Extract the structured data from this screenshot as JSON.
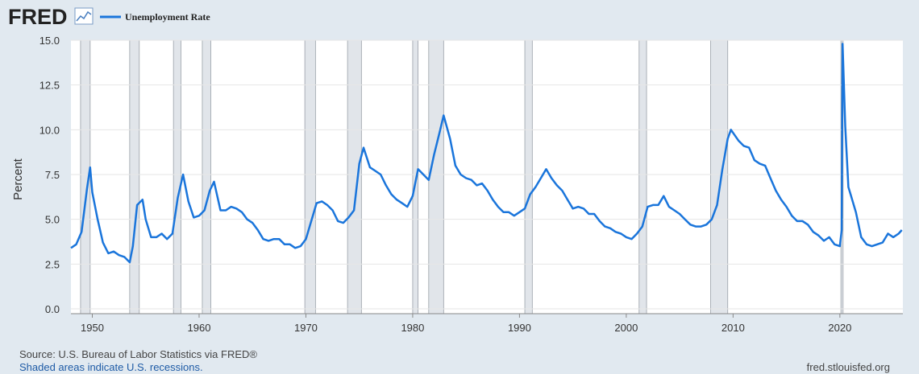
{
  "logo": "FRED",
  "source": "Source: U.S. Bureau of Labor Statistics via FRED®",
  "note": "Shaded areas indicate U.S. recessions.",
  "site": "fred.stlouisfed.org",
  "chart_data": {
    "type": "line",
    "ylabel": "Percent",
    "grid": true,
    "xlim": [
      1948,
      2025.9
    ],
    "ylim": [
      0,
      15
    ],
    "xticks": [
      1950,
      1960,
      1970,
      1980,
      1990,
      2000,
      2010,
      2020
    ],
    "yticks": [
      {
        "value": 0,
        "label": "0.0"
      },
      {
        "value": 2.5,
        "label": "2.5"
      },
      {
        "value": 5,
        "label": "5.0"
      },
      {
        "value": 7.5,
        "label": "7.5"
      },
      {
        "value": 10,
        "label": "10.0"
      },
      {
        "value": 12.5,
        "label": "12.5"
      },
      {
        "value": 15,
        "label": "15.0"
      }
    ],
    "recessions": [
      [
        1948.9,
        1949.8
      ],
      [
        1953.5,
        1954.4
      ],
      [
        1957.6,
        1958.3
      ],
      [
        1960.3,
        1961.1
      ],
      [
        1969.9,
        1970.9
      ],
      [
        1973.9,
        1975.2
      ],
      [
        1980.0,
        1980.5
      ],
      [
        1981.5,
        1982.9
      ],
      [
        1990.5,
        1991.2
      ],
      [
        2001.2,
        2001.9
      ],
      [
        2007.9,
        2009.5
      ],
      [
        2020.1,
        2020.3
      ]
    ],
    "x": [
      1948.0,
      1948.5,
      1949.0,
      1949.5,
      1949.8,
      1950.0,
      1950.5,
      1951.0,
      1951.5,
      1952.0,
      1952.5,
      1953.0,
      1953.5,
      1953.8,
      1954.2,
      1954.7,
      1955.0,
      1955.5,
      1956.0,
      1956.5,
      1957.0,
      1957.5,
      1958.0,
      1958.5,
      1959.0,
      1959.5,
      1960.0,
      1960.5,
      1961.0,
      1961.4,
      1962.0,
      1962.5,
      1963.0,
      1963.5,
      1964.0,
      1964.5,
      1965.0,
      1965.5,
      1966.0,
      1966.5,
      1967.0,
      1967.5,
      1968.0,
      1968.5,
      1969.0,
      1969.5,
      1970.0,
      1970.5,
      1971.0,
      1971.5,
      1972.0,
      1972.5,
      1973.0,
      1973.5,
      1974.0,
      1974.5,
      1975.0,
      1975.4,
      1976.0,
      1976.5,
      1977.0,
      1977.5,
      1978.0,
      1978.5,
      1979.0,
      1979.5,
      1980.0,
      1980.5,
      1981.0,
      1981.5,
      1982.0,
      1982.5,
      1982.9,
      1983.5,
      1984.0,
      1984.5,
      1985.0,
      1985.5,
      1986.0,
      1986.5,
      1987.0,
      1987.5,
      1988.0,
      1988.5,
      1989.0,
      1989.5,
      1990.0,
      1990.5,
      1991.0,
      1991.5,
      1992.0,
      1992.5,
      1993.0,
      1993.5,
      1994.0,
      1994.5,
      1995.0,
      1995.5,
      1996.0,
      1996.5,
      1997.0,
      1997.5,
      1998.0,
      1998.5,
      1999.0,
      1999.5,
      2000.0,
      2000.5,
      2001.0,
      2001.5,
      2002.0,
      2002.5,
      2003.0,
      2003.5,
      2004.0,
      2004.5,
      2005.0,
      2005.5,
      2006.0,
      2006.5,
      2007.0,
      2007.5,
      2008.0,
      2008.5,
      2009.0,
      2009.5,
      2009.8,
      2010.5,
      2011.0,
      2011.5,
      2012.0,
      2012.5,
      2013.0,
      2013.5,
      2014.0,
      2014.5,
      2015.0,
      2015.5,
      2016.0,
      2016.5,
      2017.0,
      2017.5,
      2018.0,
      2018.5,
      2019.0,
      2019.5,
      2020.0,
      2020.17,
      2020.25,
      2020.5,
      2020.8,
      2021.0,
      2021.5,
      2022.0,
      2022.5,
      2023.0,
      2023.5,
      2024.0,
      2024.5,
      2025.0,
      2025.5,
      2025.8
    ],
    "series": [
      {
        "name": "Unemployment Rate",
        "color": "#1a75db",
        "values": [
          3.4,
          3.6,
          4.3,
          6.7,
          7.9,
          6.5,
          5.0,
          3.7,
          3.1,
          3.2,
          3.0,
          2.9,
          2.6,
          3.5,
          5.8,
          6.1,
          5.0,
          4.0,
          4.0,
          4.2,
          3.9,
          4.2,
          6.2,
          7.5,
          6.0,
          5.1,
          5.2,
          5.5,
          6.6,
          7.1,
          5.5,
          5.5,
          5.7,
          5.6,
          5.4,
          5.0,
          4.8,
          4.4,
          3.9,
          3.8,
          3.9,
          3.9,
          3.6,
          3.6,
          3.4,
          3.5,
          3.9,
          4.9,
          5.9,
          6.0,
          5.8,
          5.5,
          4.9,
          4.8,
          5.1,
          5.5,
          8.1,
          9.0,
          7.9,
          7.7,
          7.5,
          6.9,
          6.4,
          6.1,
          5.9,
          5.7,
          6.3,
          7.8,
          7.5,
          7.2,
          8.6,
          9.8,
          10.8,
          9.5,
          8.0,
          7.5,
          7.3,
          7.2,
          6.9,
          7.0,
          6.6,
          6.1,
          5.7,
          5.4,
          5.4,
          5.2,
          5.4,
          5.6,
          6.4,
          6.8,
          7.3,
          7.8,
          7.3,
          6.9,
          6.6,
          6.1,
          5.6,
          5.7,
          5.6,
          5.3,
          5.3,
          4.9,
          4.6,
          4.5,
          4.3,
          4.2,
          4.0,
          3.9,
          4.2,
          4.6,
          5.7,
          5.8,
          5.8,
          6.3,
          5.7,
          5.5,
          5.3,
          5.0,
          4.7,
          4.6,
          4.6,
          4.7,
          5.0,
          5.8,
          7.8,
          9.5,
          10.0,
          9.4,
          9.1,
          9.0,
          8.3,
          8.1,
          8.0,
          7.3,
          6.6,
          6.1,
          5.7,
          5.2,
          4.9,
          4.9,
          4.7,
          4.3,
          4.1,
          3.8,
          4.0,
          3.6,
          3.5,
          4.4,
          14.8,
          10.2,
          6.8,
          6.4,
          5.4,
          4.0,
          3.6,
          3.5,
          3.6,
          3.7,
          4.2,
          4.0,
          4.2,
          4.4
        ]
      }
    ]
  }
}
